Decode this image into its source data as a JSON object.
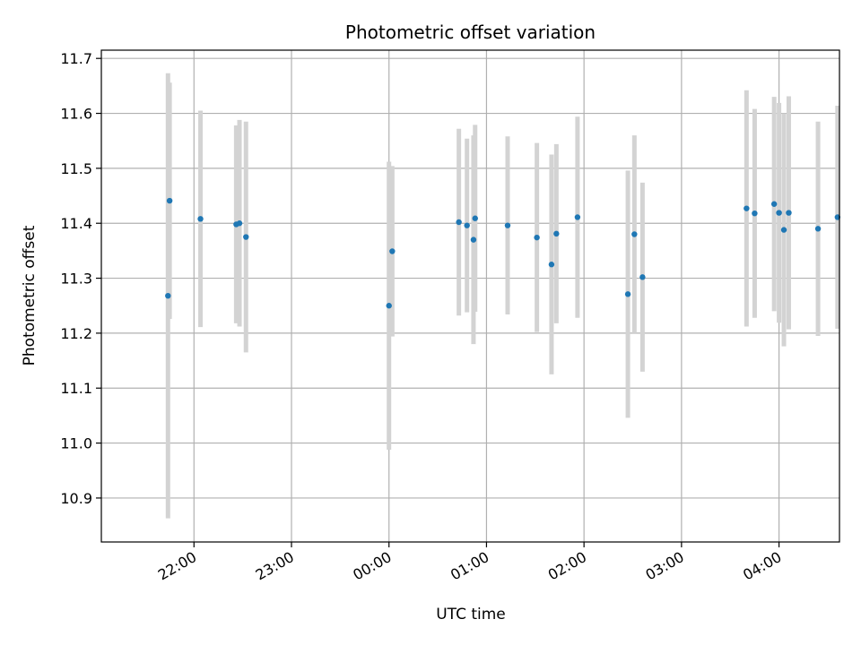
{
  "chart_data": {
    "type": "scatter",
    "title": "Photometric offset variation",
    "xlabel": "UTC time",
    "ylabel": "Photometric offset",
    "x_unit": "UTC hours (24+ = next day)",
    "xlim": [
      21.05,
      28.62
    ],
    "ylim": [
      10.82,
      11.715
    ],
    "x_ticks": [
      {
        "value": 22,
        "label": "22:00"
      },
      {
        "value": 23,
        "label": "23:00"
      },
      {
        "value": 24,
        "label": "00:00"
      },
      {
        "value": 25,
        "label": "01:00"
      },
      {
        "value": 26,
        "label": "02:00"
      },
      {
        "value": 27,
        "label": "03:00"
      },
      {
        "value": 28,
        "label": "04:00"
      }
    ],
    "y_ticks": [
      10.9,
      11.0,
      11.1,
      11.2,
      11.3,
      11.4,
      11.5,
      11.6,
      11.7
    ],
    "grid": true,
    "point_color": "#1f77b4",
    "errorbar_color": "#d3d3d3",
    "points": [
      {
        "x": "21:44",
        "y": 11.268,
        "err": 0.405
      },
      {
        "x": "21:45",
        "y": 11.441,
        "err": 0.215
      },
      {
        "x": "22:04",
        "y": 11.408,
        "err": 0.197
      },
      {
        "x": "22:26",
        "y": 11.398,
        "err": 0.18
      },
      {
        "x": "22:28",
        "y": 11.4,
        "err": 0.188
      },
      {
        "x": "22:32",
        "y": 11.375,
        "err": 0.21
      },
      {
        "x": "24:00",
        "y": 11.25,
        "err": 0.262
      },
      {
        "x": "24:02",
        "y": 11.349,
        "err": 0.155
      },
      {
        "x": "24:43",
        "y": 11.402,
        "err": 0.17
      },
      {
        "x": "24:48",
        "y": 11.396,
        "err": 0.158
      },
      {
        "x": "24:52",
        "y": 11.37,
        "err": 0.19
      },
      {
        "x": "24:53",
        "y": 11.409,
        "err": 0.17
      },
      {
        "x": "25:13",
        "y": 11.396,
        "err": 0.162
      },
      {
        "x": "25:31",
        "y": 11.374,
        "err": 0.172
      },
      {
        "x": "25:40",
        "y": 11.325,
        "err": 0.2
      },
      {
        "x": "25:43",
        "y": 11.381,
        "err": 0.163
      },
      {
        "x": "25:56",
        "y": 11.411,
        "err": 0.183
      },
      {
        "x": "26:27",
        "y": 11.271,
        "err": 0.225
      },
      {
        "x": "26:31",
        "y": 11.38,
        "err": 0.18
      },
      {
        "x": "26:36",
        "y": 11.302,
        "err": 0.172
      },
      {
        "x": "27:40",
        "y": 11.427,
        "err": 0.215
      },
      {
        "x": "27:45",
        "y": 11.418,
        "err": 0.19
      },
      {
        "x": "27:57",
        "y": 11.435,
        "err": 0.195
      },
      {
        "x": "28:00",
        "y": 11.419,
        "err": 0.2
      },
      {
        "x": "28:03",
        "y": 11.388,
        "err": 0.212
      },
      {
        "x": "28:06",
        "y": 11.419,
        "err": 0.212
      },
      {
        "x": "28:24",
        "y": 11.39,
        "err": 0.195
      },
      {
        "x": "28:36",
        "y": 11.411,
        "err": 0.203
      }
    ]
  }
}
